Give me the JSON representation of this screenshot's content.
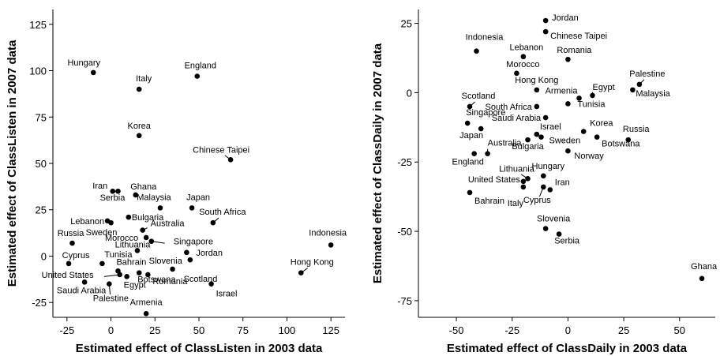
{
  "chart_data": [
    {
      "type": "scatter",
      "xlabel": "Estimated effect of ClassListen in 2003 data",
      "ylabel": "Estimated effect of ClassListen in 2007 data",
      "xlim": [
        -33,
        133
      ],
      "ylim": [
        -33,
        133
      ],
      "xticks": [
        -25,
        0,
        25,
        50,
        75,
        100,
        125
      ],
      "yticks": [
        -25,
        0,
        25,
        50,
        75,
        100,
        125
      ],
      "points": [
        {
          "label": "Hungary",
          "x": -10,
          "y": 99
        },
        {
          "label": "England",
          "x": 49,
          "y": 97
        },
        {
          "label": "Italy",
          "x": 16,
          "y": 90
        },
        {
          "label": "Korea",
          "x": 16,
          "y": 65
        },
        {
          "label": "Chinese Taipei",
          "x": 68,
          "y": 52
        },
        {
          "label": "Iran",
          "x": 1,
          "y": 35
        },
        {
          "label": "Serbia",
          "x": 4,
          "y": 35
        },
        {
          "label": "Ghana",
          "x": 14,
          "y": 33
        },
        {
          "label": "Malaysia",
          "x": 28,
          "y": 26
        },
        {
          "label": "Japan",
          "x": 46,
          "y": 26
        },
        {
          "label": "South Africa",
          "x": 58,
          "y": 18
        },
        {
          "label": "Bulgaria",
          "x": 10,
          "y": 21
        },
        {
          "label": "Lebanon",
          "x": -2,
          "y": 19
        },
        {
          "label": "Sweden",
          "x": 0,
          "y": 18
        },
        {
          "label": "Australia",
          "x": 18,
          "y": 14
        },
        {
          "label": "Morocco",
          "x": 20,
          "y": 10
        },
        {
          "label": "Singapore",
          "x": 23,
          "y": 8
        },
        {
          "label": "Russia",
          "x": -22,
          "y": 7
        },
        {
          "label": "Indonesia",
          "x": 125,
          "y": 6
        },
        {
          "label": "Lithuania",
          "x": 15,
          "y": 3
        },
        {
          "label": "Jordan",
          "x": 43,
          "y": 2
        },
        {
          "label": "Cyprus",
          "x": -24,
          "y": -4
        },
        {
          "label": "Tunisia",
          "x": -5,
          "y": -4
        },
        {
          "label": "Slovenia",
          "x": 45,
          "y": -2
        },
        {
          "label": "Bahrain",
          "x": 4,
          "y": -8
        },
        {
          "label": "Scotland",
          "x": 35,
          "y": -7
        },
        {
          "label": "United States",
          "x": 5,
          "y": -10
        },
        {
          "label": "Egypt",
          "x": 9,
          "y": -11
        },
        {
          "label": "Botswana",
          "x": 16,
          "y": -9
        },
        {
          "label": "Romania",
          "x": 21,
          "y": -10
        },
        {
          "label": "Hong Kong",
          "x": 108,
          "y": -9
        },
        {
          "label": "Saudi Arabia",
          "x": -15,
          "y": -14
        },
        {
          "label": "Palestine",
          "x": -1,
          "y": -15
        },
        {
          "label": "Israel",
          "x": 57,
          "y": -15
        },
        {
          "label": "Armenia",
          "x": 20,
          "y": -31
        }
      ]
    },
    {
      "type": "scatter",
      "xlabel": "Estimated effect of ClassDaily in 2003 data",
      "ylabel": "Estimated effect of ClassDaily in 2007 data",
      "xlim": [
        -67,
        66
      ],
      "ylim": [
        -81,
        30
      ],
      "xticks": [
        -50,
        -25,
        0,
        25,
        50
      ],
      "yticks": [
        -75,
        -50,
        -25,
        0,
        25
      ],
      "points": [
        {
          "label": "Jordan",
          "x": -10,
          "y": 26
        },
        {
          "label": "Chinese Taipei",
          "x": -10,
          "y": 22
        },
        {
          "label": "Indonesia",
          "x": -41,
          "y": 15
        },
        {
          "label": "Lebanon",
          "x": -20,
          "y": 13
        },
        {
          "label": "Romania",
          "x": 0,
          "y": 12
        },
        {
          "label": "Morocco",
          "x": -23,
          "y": 7
        },
        {
          "label": "Palestine",
          "x": 32,
          "y": 3
        },
        {
          "label": "Malaysia",
          "x": 29,
          "y": 1
        },
        {
          "label": "Hong Kong",
          "x": -14,
          "y": 1
        },
        {
          "label": "Egypt",
          "x": 11,
          "y": -1
        },
        {
          "label": "Armenia",
          "x": 5,
          "y": -2
        },
        {
          "label": "Tunisia",
          "x": 0,
          "y": -4
        },
        {
          "label": "Scotland",
          "x": -44,
          "y": -5
        },
        {
          "label": "South Africa",
          "x": -14,
          "y": -5
        },
        {
          "label": "Saudi Arabia",
          "x": -10,
          "y": -9
        },
        {
          "label": "Singapore",
          "x": -45,
          "y": -11
        },
        {
          "label": "Korea",
          "x": 7,
          "y": -14
        },
        {
          "label": "Japan",
          "x": -39,
          "y": -13
        },
        {
          "label": "Israel",
          "x": -14,
          "y": -15
        },
        {
          "label": "Russia",
          "x": 27,
          "y": -17
        },
        {
          "label": "Bulgaria",
          "x": -18,
          "y": -17
        },
        {
          "label": "Sweden",
          "x": -12,
          "y": -16
        },
        {
          "label": "Botswana",
          "x": 13,
          "y": -16
        },
        {
          "label": "Australia",
          "x": -36,
          "y": -22
        },
        {
          "label": "England",
          "x": -42,
          "y": -22
        },
        {
          "label": "Norway",
          "x": 0,
          "y": -21
        },
        {
          "label": "Lithuania",
          "x": -18,
          "y": -31
        },
        {
          "label": "Hungary",
          "x": -11,
          "y": -30
        },
        {
          "label": "United States",
          "x": -20,
          "y": -32
        },
        {
          "label": "Italy",
          "x": -20,
          "y": -34
        },
        {
          "label": "Cyprus",
          "x": -11,
          "y": -34
        },
        {
          "label": "Iran",
          "x": -8,
          "y": -35
        },
        {
          "label": "Bahrain",
          "x": -44,
          "y": -36
        },
        {
          "label": "Slovenia",
          "x": -10,
          "y": -49
        },
        {
          "label": "Serbia",
          "x": -4,
          "y": -51
        },
        {
          "label": "Ghana",
          "x": 60,
          "y": -67
        }
      ]
    }
  ]
}
